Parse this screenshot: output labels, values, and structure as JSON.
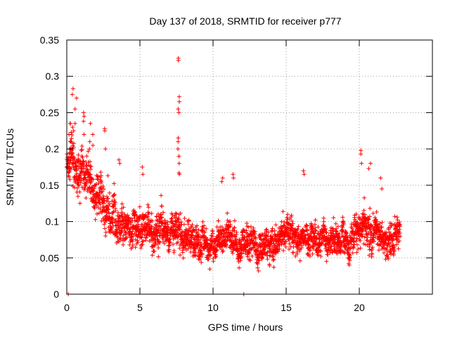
{
  "chart_data": {
    "type": "scatter",
    "title": "Day 137 of 2018, SRMTID for receiver p777",
    "xlabel": "GPS time / hours",
    "ylabel": "SRMTID / TECUs",
    "xlim": [
      0,
      25
    ],
    "ylim": [
      0,
      0.35
    ],
    "x_ticks": [
      0,
      5,
      10,
      15,
      20
    ],
    "y_ticks": [
      0,
      0.05,
      0.1,
      0.15,
      0.2,
      0.25,
      0.3,
      0.35
    ],
    "x_tick_labels": [
      "0",
      "5",
      "10",
      "15",
      "20"
    ],
    "y_tick_labels": [
      "0",
      "0.05",
      "0.1",
      "0.15",
      "0.2",
      "0.25",
      "0.3",
      "0.35"
    ],
    "grid": true,
    "marker": "+",
    "color": "#ff0000",
    "data_span_hours": [
      0,
      22.8
    ],
    "sample_interval_hours": 0.0083,
    "series": [
      {
        "name": "SRMTID",
        "profile": [
          {
            "x": 0.0,
            "mean": 0.18,
            "spread": 0.03
          },
          {
            "x": 0.5,
            "mean": 0.19,
            "spread": 0.05
          },
          {
            "x": 1.0,
            "mean": 0.16,
            "spread": 0.05
          },
          {
            "x": 2.0,
            "mean": 0.14,
            "spread": 0.05
          },
          {
            "x": 3.0,
            "mean": 0.11,
            "spread": 0.05
          },
          {
            "x": 4.0,
            "mean": 0.09,
            "spread": 0.045
          },
          {
            "x": 5.0,
            "mean": 0.085,
            "spread": 0.045
          },
          {
            "x": 6.0,
            "mean": 0.08,
            "spread": 0.04
          },
          {
            "x": 7.0,
            "mean": 0.085,
            "spread": 0.04
          },
          {
            "x": 8.0,
            "mean": 0.085,
            "spread": 0.04
          },
          {
            "x": 9.0,
            "mean": 0.07,
            "spread": 0.035
          },
          {
            "x": 10.0,
            "mean": 0.07,
            "spread": 0.035
          },
          {
            "x": 11.0,
            "mean": 0.075,
            "spread": 0.035
          },
          {
            "x": 12.0,
            "mean": 0.07,
            "spread": 0.035
          },
          {
            "x": 13.0,
            "mean": 0.065,
            "spread": 0.035
          },
          {
            "x": 14.0,
            "mean": 0.07,
            "spread": 0.035
          },
          {
            "x": 15.0,
            "mean": 0.075,
            "spread": 0.035
          },
          {
            "x": 16.0,
            "mean": 0.08,
            "spread": 0.035
          },
          {
            "x": 17.0,
            "mean": 0.075,
            "spread": 0.035
          },
          {
            "x": 18.0,
            "mean": 0.075,
            "spread": 0.035
          },
          {
            "x": 19.0,
            "mean": 0.08,
            "spread": 0.035
          },
          {
            "x": 20.0,
            "mean": 0.085,
            "spread": 0.04
          },
          {
            "x": 21.0,
            "mean": 0.09,
            "spread": 0.04
          },
          {
            "x": 22.0,
            "mean": 0.08,
            "spread": 0.035
          },
          {
            "x": 22.8,
            "mean": 0.085,
            "spread": 0.035
          }
        ],
        "spikes": [
          {
            "x": 0.2,
            "values": [
              0.2,
              0.22,
              0.235,
              0.235,
              0.195,
              0.21
            ]
          },
          {
            "x": 0.4,
            "values": [
              0.283,
              0.275,
              0.23,
              0.225
            ]
          },
          {
            "x": 0.6,
            "values": [
              0.27,
              0.235,
              0.255
            ]
          },
          {
            "x": 1.2,
            "values": [
              0.25,
              0.245,
              0.238,
              0.22
            ]
          },
          {
            "x": 1.6,
            "values": [
              0.2,
              0.21,
              0.235
            ]
          },
          {
            "x": 1.8,
            "values": [
              0.22,
              0.205
            ]
          },
          {
            "x": 2.6,
            "values": [
              0.225,
              0.228,
              0.2
            ]
          },
          {
            "x": 3.6,
            "values": [
              0.185,
              0.18
            ]
          },
          {
            "x": 5.2,
            "values": [
              0.175,
              0.165
            ]
          },
          {
            "x": 7.65,
            "values": [
              0.325,
              0.322,
              0.272,
              0.265,
              0.255,
              0.25,
              0.215,
              0.21,
              0.2,
              0.19,
              0.18,
              0.167,
              0.165
            ]
          },
          {
            "x": 10.6,
            "values": [
              0.16,
              0.155
            ]
          },
          {
            "x": 11.4,
            "values": [
              0.165,
              0.16
            ]
          },
          {
            "x": 16.2,
            "values": [
              0.17,
              0.165
            ]
          },
          {
            "x": 20.1,
            "values": [
              0.198,
              0.193,
              0.18
            ]
          },
          {
            "x": 20.7,
            "values": [
              0.18,
              0.173
            ]
          },
          {
            "x": 21.5,
            "values": [
              0.16,
              0.145
            ]
          }
        ],
        "zero_points": [
          0.1,
          12.1
        ]
      }
    ]
  }
}
